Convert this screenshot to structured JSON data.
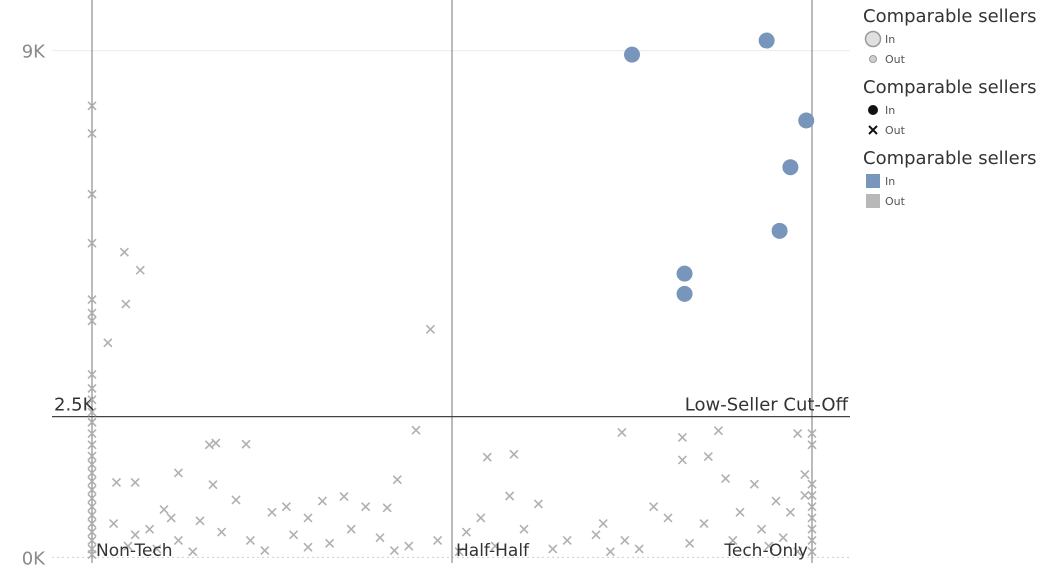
{
  "chart_data": {
    "type": "scatter",
    "y_ticks": [
      {
        "value": 0,
        "label": "0K"
      },
      {
        "value": 9000,
        "label": "9K"
      }
    ],
    "ylim": [
      -100,
      9900
    ],
    "xlim": [
      0,
      1
    ],
    "categories": [
      {
        "name": "Non-Tech",
        "x": 0
      },
      {
        "name": "Half-Half",
        "x": 0.5
      },
      {
        "name": "Tech-Only",
        "x": 1
      }
    ],
    "reference_line": {
      "value": 2500,
      "value_label": "2.5K",
      "label": "Low-Seller Cut-Off"
    },
    "colors": {
      "in": "#7895bb",
      "out": "#b0b0b0",
      "ref": "#444444"
    },
    "series": [
      {
        "name": "In",
        "marker": "circle",
        "points": [
          {
            "x": 0.75,
            "y": 8930
          },
          {
            "x": 0.937,
            "y": 9180
          },
          {
            "x": 0.992,
            "y": 7760
          },
          {
            "x": 0.97,
            "y": 6930
          },
          {
            "x": 0.955,
            "y": 5800
          },
          {
            "x": 0.823,
            "y": 5040
          },
          {
            "x": 0.823,
            "y": 4680
          }
        ]
      },
      {
        "name": "Out",
        "marker": "x",
        "points": [
          {
            "x": 0,
            "y": 8020
          },
          {
            "x": 0,
            "y": 7530
          },
          {
            "x": 0,
            "y": 6450
          },
          {
            "x": 0,
            "y": 5580
          },
          {
            "x": 0,
            "y": 4580
          },
          {
            "x": 0,
            "y": 4340
          },
          {
            "x": 0,
            "y": 4200
          },
          {
            "x": 0,
            "y": 3250
          },
          {
            "x": 0,
            "y": 3000
          },
          {
            "x": 0,
            "y": 2800
          },
          {
            "x": 0,
            "y": 2580
          },
          {
            "x": 0,
            "y": 2400
          },
          {
            "x": 0,
            "y": 2200
          },
          {
            "x": 0,
            "y": 2000
          },
          {
            "x": 0,
            "y": 1800
          },
          {
            "x": 0,
            "y": 1650
          },
          {
            "x": 0,
            "y": 1500
          },
          {
            "x": 0,
            "y": 1350
          },
          {
            "x": 0,
            "y": 1200
          },
          {
            "x": 0,
            "y": 1050
          },
          {
            "x": 0,
            "y": 900
          },
          {
            "x": 0,
            "y": 750
          },
          {
            "x": 0,
            "y": 600
          },
          {
            "x": 0,
            "y": 450
          },
          {
            "x": 0,
            "y": 300
          },
          {
            "x": 0,
            "y": 150
          },
          {
            "x": 0,
            "y": 50
          },
          {
            "x": 0.045,
            "y": 5420
          },
          {
            "x": 0.067,
            "y": 5100
          },
          {
            "x": 0.047,
            "y": 4500
          },
          {
            "x": 0.022,
            "y": 3810
          },
          {
            "x": 0.47,
            "y": 4050
          },
          {
            "x": 0.45,
            "y": 2260
          },
          {
            "x": 0.163,
            "y": 2000
          },
          {
            "x": 0.172,
            "y": 2030
          },
          {
            "x": 0.214,
            "y": 2010
          },
          {
            "x": 0.12,
            "y": 1500
          },
          {
            "x": 0.034,
            "y": 1330
          },
          {
            "x": 0.06,
            "y": 1330
          },
          {
            "x": 0.168,
            "y": 1290
          },
          {
            "x": 0.35,
            "y": 1080
          },
          {
            "x": 0.2,
            "y": 1020
          },
          {
            "x": 0.424,
            "y": 1380
          },
          {
            "x": 0.1,
            "y": 850
          },
          {
            "x": 0.15,
            "y": 650
          },
          {
            "x": 0.25,
            "y": 800
          },
          {
            "x": 0.3,
            "y": 700
          },
          {
            "x": 0.32,
            "y": 1000
          },
          {
            "x": 0.27,
            "y": 900
          },
          {
            "x": 0.38,
            "y": 900
          },
          {
            "x": 0.41,
            "y": 880
          },
          {
            "x": 0.08,
            "y": 500
          },
          {
            "x": 0.12,
            "y": 300
          },
          {
            "x": 0.18,
            "y": 450
          },
          {
            "x": 0.22,
            "y": 300
          },
          {
            "x": 0.28,
            "y": 400
          },
          {
            "x": 0.33,
            "y": 250
          },
          {
            "x": 0.36,
            "y": 500
          },
          {
            "x": 0.4,
            "y": 350
          },
          {
            "x": 0.44,
            "y": 200
          },
          {
            "x": 0.48,
            "y": 300
          },
          {
            "x": 0.05,
            "y": 200
          },
          {
            "x": 0.09,
            "y": 150
          },
          {
            "x": 0.14,
            "y": 100
          },
          {
            "x": 0.24,
            "y": 120
          },
          {
            "x": 0.3,
            "y": 180
          },
          {
            "x": 0.42,
            "y": 120
          },
          {
            "x": 0.03,
            "y": 600
          },
          {
            "x": 0.06,
            "y": 400
          },
          {
            "x": 0.11,
            "y": 700
          },
          {
            "x": 0.549,
            "y": 1780
          },
          {
            "x": 0.586,
            "y": 1830
          },
          {
            "x": 0.58,
            "y": 1090
          },
          {
            "x": 0.54,
            "y": 700
          },
          {
            "x": 0.62,
            "y": 950
          },
          {
            "x": 0.6,
            "y": 500
          },
          {
            "x": 0.52,
            "y": 450
          },
          {
            "x": 0.56,
            "y": 200
          },
          {
            "x": 0.66,
            "y": 300
          },
          {
            "x": 0.7,
            "y": 400
          },
          {
            "x": 0.64,
            "y": 150
          },
          {
            "x": 0.51,
            "y": 100
          },
          {
            "x": 0.736,
            "y": 2220
          },
          {
            "x": 0.82,
            "y": 2130
          },
          {
            "x": 0.82,
            "y": 1730
          },
          {
            "x": 0.87,
            "y": 2250
          },
          {
            "x": 0.856,
            "y": 1790
          },
          {
            "x": 0.88,
            "y": 1400
          },
          {
            "x": 0.92,
            "y": 1300
          },
          {
            "x": 0.98,
            "y": 2200
          },
          {
            "x": 0.99,
            "y": 1470
          },
          {
            "x": 1,
            "y": 2200
          },
          {
            "x": 1,
            "y": 2000
          },
          {
            "x": 1,
            "y": 1300
          },
          {
            "x": 0.78,
            "y": 900
          },
          {
            "x": 0.8,
            "y": 700
          },
          {
            "x": 0.85,
            "y": 600
          },
          {
            "x": 0.9,
            "y": 800
          },
          {
            "x": 0.93,
            "y": 500
          },
          {
            "x": 0.96,
            "y": 350
          },
          {
            "x": 0.74,
            "y": 300
          },
          {
            "x": 0.76,
            "y": 150
          },
          {
            "x": 0.83,
            "y": 250
          },
          {
            "x": 0.89,
            "y": 300
          },
          {
            "x": 0.94,
            "y": 200
          },
          {
            "x": 0.98,
            "y": 100
          },
          {
            "x": 0.71,
            "y": 600
          },
          {
            "x": 0.72,
            "y": 100
          },
          {
            "x": 0.97,
            "y": 800
          },
          {
            "x": 1,
            "y": 1100
          },
          {
            "x": 1,
            "y": 900
          },
          {
            "x": 1,
            "y": 700
          },
          {
            "x": 1,
            "y": 500
          },
          {
            "x": 1,
            "y": 300
          },
          {
            "x": 1,
            "y": 100
          },
          {
            "x": 0.99,
            "y": 1100
          },
          {
            "x": 0.95,
            "y": 1000
          }
        ]
      }
    ]
  },
  "legend": {
    "size": {
      "title": "Comparable sellers",
      "items": [
        "In",
        "Out"
      ]
    },
    "shape": {
      "title": "Comparable sellers",
      "items": [
        "In",
        "Out"
      ]
    },
    "color": {
      "title": "Comparable sellers",
      "items": [
        "In",
        "Out"
      ]
    }
  }
}
